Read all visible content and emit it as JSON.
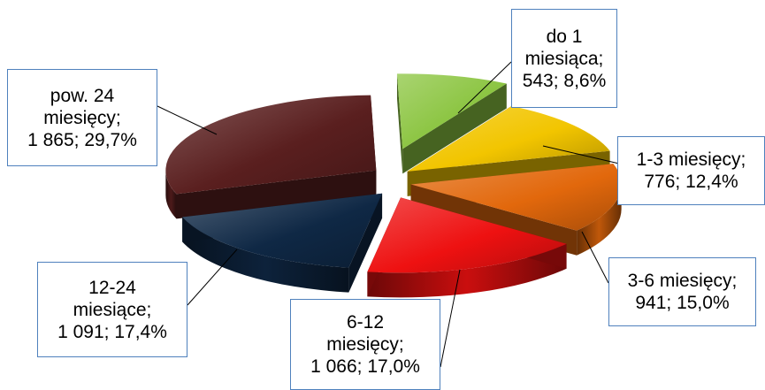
{
  "chart_data": {
    "type": "pie",
    "title": "",
    "slices": [
      {
        "category": "do 1 miesiąca",
        "count": "543",
        "percent_text": "8,6%",
        "value": 543,
        "percent": 8.6,
        "color": "#8cc542"
      },
      {
        "category": "1-3 miesięcy",
        "count": "776",
        "percent_text": "12,4%",
        "value": 776,
        "percent": 12.4,
        "color": "#f2c500"
      },
      {
        "category": "3-6 miesięcy",
        "count": "941",
        "percent_text": "15,0%",
        "value": 941,
        "percent": 15.0,
        "color": "#e2680c"
      },
      {
        "category": "6-12 miesięcy",
        "count": "1 066",
        "percent_text": "17,0%",
        "value": 1066,
        "percent": 17.0,
        "color": "#ee1111"
      },
      {
        "category": "12-24 miesiące",
        "count": "1 091",
        "percent_text": "17,4%",
        "value": 1091,
        "percent": 17.4,
        "color": "#0f2845"
      },
      {
        "category": "pow. 24 miesięcy",
        "count": "1 865",
        "percent_text": "29,7%",
        "value": 1865,
        "percent": 29.7,
        "color": "#5a1f1f"
      }
    ],
    "label_lines": [
      [
        "do 1",
        "miesiąca;",
        "543; 8,6%"
      ],
      [
        "1-3 miesięcy;",
        "776; 12,4%"
      ],
      [
        "3-6 miesięcy;",
        "941; 15,0%"
      ],
      [
        "6-12",
        "miesięcy;",
        "1 066; 17,0%"
      ],
      [
        "12-24",
        "miesiące;",
        "1 091; 17,4%"
      ],
      [
        "pow. 24",
        "miesięcy;",
        "1 865; 29,7%"
      ]
    ]
  }
}
